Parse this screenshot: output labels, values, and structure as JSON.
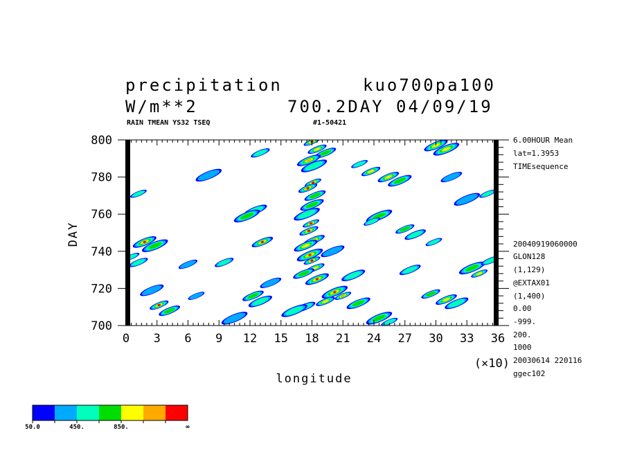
{
  "header": {
    "title_left": "precipitation",
    "title_right": "kuo700pa100",
    "units": "W/m**2",
    "run_info": "700.2DAY 04/09/19",
    "subtitle": "RAIN TMEAN YS32 TSEQ",
    "id_code": "#1-50421"
  },
  "side_info": {
    "top": [
      "6.00HOUR Mean",
      "lat=1.3953",
      "TIMEsequence"
    ],
    "bottom": [
      "20040919060000",
      "GLON128",
      "(1,129)",
      "@EXTAX01",
      "(1,400)",
      "0.00",
      "-999.",
      "200.",
      "1000",
      "20030614 220116",
      "ggec102"
    ]
  },
  "colors": {
    "levels": [
      "#0000ff",
      "#00aaff",
      "#00ffbb",
      "#00dd00",
      "#ffff00",
      "#ffaa00",
      "#ff0000"
    ]
  },
  "colorbar": {
    "labels": [
      "50.0",
      "450.",
      "850.",
      "∞"
    ]
  },
  "chart_data": {
    "type": "heatmap",
    "title": "precipitation",
    "xlabel": "longitude",
    "ylabel": "DAY",
    "x_scale_note": "(×10)",
    "xlim": [
      0,
      36
    ],
    "ylim": [
      700,
      800
    ],
    "xticks": [
      0,
      3,
      6,
      9,
      12,
      15,
      18,
      21,
      24,
      27,
      30,
      33,
      36
    ],
    "yticks": [
      700,
      720,
      740,
      760,
      780,
      800
    ],
    "contour_levels": [
      50,
      250,
      450,
      650,
      850,
      1050,
      1250
    ],
    "features": [
      {
        "x": 18,
        "y": 799,
        "v": 1300
      },
      {
        "x": 18.5,
        "y": 795,
        "v": 900
      },
      {
        "x": 19.3,
        "y": 793,
        "v": 700
      },
      {
        "x": 17.7,
        "y": 789,
        "v": 1100
      },
      {
        "x": 18.2,
        "y": 786,
        "v": 600
      },
      {
        "x": 18.1,
        "y": 777,
        "v": 1300
      },
      {
        "x": 17.6,
        "y": 774,
        "v": 1250
      },
      {
        "x": 18.3,
        "y": 770,
        "v": 700
      },
      {
        "x": 18.0,
        "y": 765,
        "v": 800
      },
      {
        "x": 17.5,
        "y": 760,
        "v": 600
      },
      {
        "x": 17.9,
        "y": 755,
        "v": 1250
      },
      {
        "x": 17.7,
        "y": 751,
        "v": 1300
      },
      {
        "x": 18.2,
        "y": 746,
        "v": 1100
      },
      {
        "x": 17.4,
        "y": 743,
        "v": 900
      },
      {
        "x": 17.8,
        "y": 738,
        "v": 1300
      },
      {
        "x": 18.0,
        "y": 735,
        "v": 1300
      },
      {
        "x": 18.3,
        "y": 731,
        "v": 900
      },
      {
        "x": 17.2,
        "y": 728,
        "v": 700
      },
      {
        "x": 18.5,
        "y": 725,
        "v": 1250
      },
      {
        "x": 20.2,
        "y": 718,
        "v": 1300
      },
      {
        "x": 21.0,
        "y": 716,
        "v": 1100
      },
      {
        "x": 19.3,
        "y": 713,
        "v": 900
      },
      {
        "x": 17.3,
        "y": 710,
        "v": 600
      },
      {
        "x": 22.5,
        "y": 712,
        "v": 700
      },
      {
        "x": 24.5,
        "y": 704,
        "v": 700
      },
      {
        "x": 25.5,
        "y": 702,
        "v": 600
      },
      {
        "x": 3.2,
        "y": 711,
        "v": 1250
      },
      {
        "x": 4.2,
        "y": 708,
        "v": 700
      },
      {
        "x": 1.8,
        "y": 745,
        "v": 1300
      },
      {
        "x": 2.8,
        "y": 743,
        "v": 700
      },
      {
        "x": 0.5,
        "y": 737,
        "v": 600
      },
      {
        "x": 1.2,
        "y": 734,
        "v": 500
      },
      {
        "x": 13.2,
        "y": 745,
        "v": 1300
      },
      {
        "x": 12.5,
        "y": 762,
        "v": 600
      },
      {
        "x": 11.7,
        "y": 759,
        "v": 700
      },
      {
        "x": 6.8,
        "y": 716,
        "v": 400
      },
      {
        "x": 9.5,
        "y": 734,
        "v": 600
      },
      {
        "x": 12.3,
        "y": 716,
        "v": 700
      },
      {
        "x": 13.0,
        "y": 713,
        "v": 600
      },
      {
        "x": 16.3,
        "y": 708,
        "v": 500
      },
      {
        "x": 22.6,
        "y": 787,
        "v": 600
      },
      {
        "x": 23.7,
        "y": 783,
        "v": 900
      },
      {
        "x": 25.4,
        "y": 780,
        "v": 1000
      },
      {
        "x": 26.5,
        "y": 778,
        "v": 700
      },
      {
        "x": 24.5,
        "y": 759,
        "v": 800
      },
      {
        "x": 23.8,
        "y": 756,
        "v": 600
      },
      {
        "x": 27.0,
        "y": 752,
        "v": 700
      },
      {
        "x": 28.0,
        "y": 749,
        "v": 600
      },
      {
        "x": 30.0,
        "y": 797,
        "v": 900
      },
      {
        "x": 31.0,
        "y": 795,
        "v": 1000
      },
      {
        "x": 29.8,
        "y": 745,
        "v": 500
      },
      {
        "x": 29.5,
        "y": 717,
        "v": 700
      },
      {
        "x": 31.0,
        "y": 714,
        "v": 900
      },
      {
        "x": 32.0,
        "y": 712,
        "v": 600
      },
      {
        "x": 33.5,
        "y": 731,
        "v": 800
      },
      {
        "x": 34.2,
        "y": 728,
        "v": 900
      },
      {
        "x": 35.3,
        "y": 735,
        "v": 500
      },
      {
        "x": 27.5,
        "y": 730,
        "v": 500
      },
      {
        "x": 22.0,
        "y": 727,
        "v": 500
      },
      {
        "x": 8.0,
        "y": 781,
        "v": 400
      },
      {
        "x": 1.2,
        "y": 771,
        "v": 500
      },
      {
        "x": 6.0,
        "y": 733,
        "v": 400
      },
      {
        "x": 14.0,
        "y": 723,
        "v": 300
      },
      {
        "x": 20.0,
        "y": 740,
        "v": 400
      },
      {
        "x": 33.0,
        "y": 768,
        "v": 400
      },
      {
        "x": 35.0,
        "y": 771,
        "v": 500
      },
      {
        "x": 13.0,
        "y": 793,
        "v": 500
      },
      {
        "x": 31.5,
        "y": 780,
        "v": 400
      },
      {
        "x": 2.5,
        "y": 719,
        "v": 300
      },
      {
        "x": 10.5,
        "y": 704,
        "v": 300
      }
    ]
  }
}
